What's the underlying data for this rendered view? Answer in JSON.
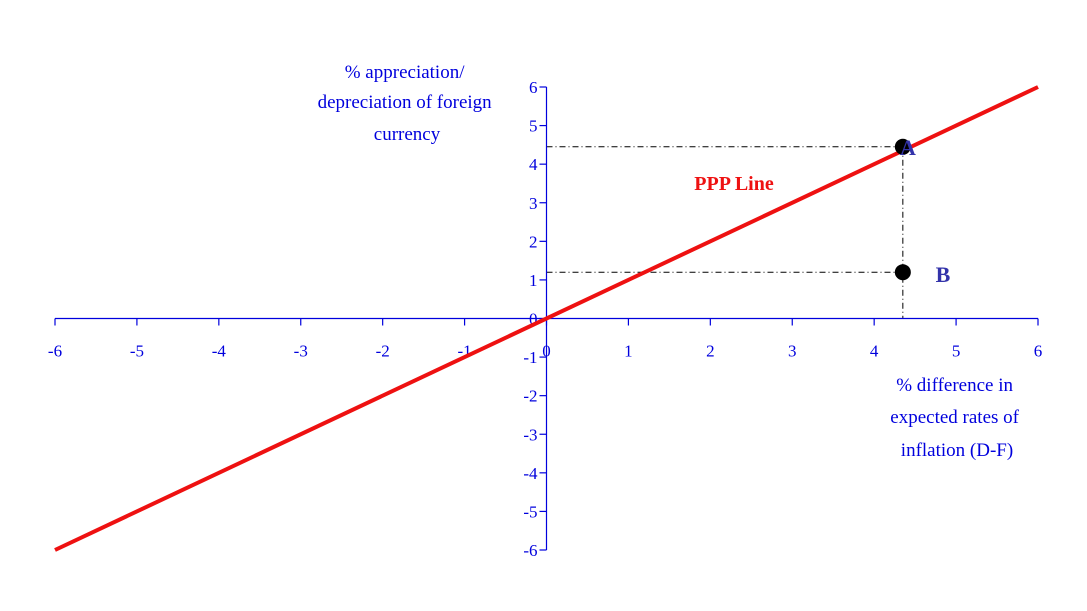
{
  "chart_data": {
    "type": "line",
    "title": "",
    "xlabel_lines": [
      "% difference in",
      "expected rates of",
      "inflation (D-F)"
    ],
    "ylabel_lines": [
      "% appreciation/",
      "depreciation of foreign",
      "currency"
    ],
    "xlim": [
      -6,
      6
    ],
    "ylim": [
      -6,
      6
    ],
    "x_ticks": [
      -6,
      -5,
      -4,
      -3,
      -2,
      -1,
      0,
      1,
      2,
      3,
      4,
      5,
      6
    ],
    "y_ticks": [
      -6,
      -5,
      -4,
      -3,
      -2,
      -1,
      0,
      1,
      2,
      3,
      4,
      5,
      6
    ],
    "grid": false,
    "series": [
      {
        "name": "PPP Line",
        "x": [
          -6,
          6
        ],
        "y": [
          -6,
          6
        ],
        "color": "#ee1111"
      }
    ],
    "points": [
      {
        "label": "A",
        "x": 4.35,
        "y": 4.45
      },
      {
        "label": "B",
        "x": 4.35,
        "y": 1.2
      }
    ],
    "axis_color": "#0000dd",
    "label_color": "#3333aa",
    "point_color": "#000000",
    "guide_color": "#000000"
  }
}
